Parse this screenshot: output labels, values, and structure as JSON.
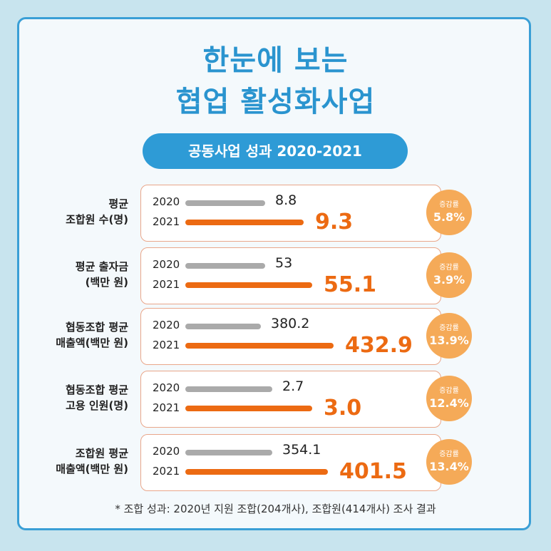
{
  "title": {
    "line1": "한눈에 보는",
    "line2": "협업 활성화사업"
  },
  "banner": "공동사업 성과 2020-2021",
  "growth_label": "증감률",
  "footnote": "* 조합 성과: 2020년 지원 조합(204개사), 조합원(414개사) 조사 결과",
  "colors": {
    "accent": "#2a94cf",
    "current": "#ec6a12",
    "previous": "#aaaaaa",
    "badge": "#f5aa58"
  },
  "chart_data": {
    "type": "bar",
    "series": [
      {
        "name": "2020"
      },
      {
        "name": "2021"
      }
    ],
    "categories": [
      {
        "label_lines": [
          "평균",
          "조합원 수(명)"
        ],
        "y2020": "8.8",
        "y2021": "9.3",
        "growth": "5.8%"
      },
      {
        "label_lines": [
          "평균 출자금",
          "(백만 원)"
        ],
        "y2020": "53",
        "y2021": "55.1",
        "growth": "3.9%"
      },
      {
        "label_lines": [
          "협동조합 평균",
          "매출액(백만 원)"
        ],
        "y2020": "380.2",
        "y2021": "432.9",
        "growth": "13.9%"
      },
      {
        "label_lines": [
          "협동조합 평균",
          "고용 인원(명)"
        ],
        "y2020": "2.7",
        "y2021": "3.0",
        "growth": "12.4%"
      },
      {
        "label_lines": [
          "조합원 평균",
          "매출액(백만 원)"
        ],
        "y2020": "354.1",
        "y2021": "401.5",
        "growth": "13.4%"
      }
    ]
  }
}
